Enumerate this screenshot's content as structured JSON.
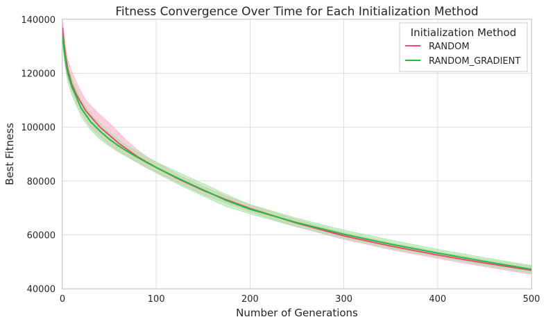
{
  "chart_data": {
    "type": "line",
    "title": "Fitness Convergence Over Time for Each Initialization Method",
    "xlabel": "Number of Generations",
    "ylabel": "Best Fitness",
    "xlim": [
      0,
      500
    ],
    "ylim": [
      40000,
      140000
    ],
    "xticks": [
      0,
      100,
      200,
      300,
      400,
      500
    ],
    "yticks": [
      40000,
      60000,
      80000,
      100000,
      120000,
      140000
    ],
    "grid": true,
    "legend": {
      "title": "Initialization Method",
      "placement": "top-right"
    },
    "series": [
      {
        "name": "RANDOM",
        "color": "#f0467c",
        "band_color": "#ffb3c8",
        "x": [
          0,
          2,
          4,
          6,
          10,
          15,
          20,
          25,
          30,
          40,
          50,
          60,
          70,
          80,
          90,
          100,
          125,
          150,
          175,
          200,
          250,
          300,
          350,
          400,
          450,
          500
        ],
        "mean": [
          137000,
          130000,
          125000,
          121000,
          116000,
          112000,
          109000,
          106000,
          104000,
          100000,
          97000,
          94000,
          91500,
          89000,
          87000,
          85000,
          80500,
          76500,
          73000,
          69800,
          64300,
          59600,
          55800,
          52500,
          49500,
          46800
        ],
        "lower": [
          134000,
          127000,
          122000,
          118000,
          113500,
          109000,
          105500,
          102500,
          100000,
          96500,
          93500,
          91000,
          89000,
          87000,
          85000,
          83300,
          79000,
          75000,
          71700,
          68500,
          63000,
          58300,
          54500,
          51200,
          48200,
          45300
        ],
        "upper": [
          140000,
          133000,
          128000,
          124500,
          120500,
          116500,
          113000,
          110000,
          108000,
          104500,
          101500,
          98000,
          94500,
          91500,
          89000,
          87000,
          82000,
          78000,
          74300,
          71000,
          65600,
          60900,
          57100,
          53800,
          50800,
          48300
        ]
      },
      {
        "name": "RANDOM_GRADIENT",
        "color": "#1fbf3c",
        "band_color": "#9fe89f",
        "x": [
          0,
          2,
          4,
          6,
          10,
          15,
          20,
          25,
          30,
          40,
          50,
          60,
          70,
          80,
          90,
          100,
          125,
          150,
          175,
          200,
          250,
          300,
          350,
          400,
          450,
          500
        ],
        "mean": [
          134000,
          128000,
          123000,
          119500,
          115000,
          111000,
          107000,
          104500,
          102000,
          98500,
          95500,
          93000,
          90800,
          88800,
          86800,
          85000,
          80700,
          76700,
          72700,
          69500,
          64500,
          60200,
          56500,
          53200,
          50100,
          47200
        ],
        "lower": [
          131000,
          125000,
          120000,
          116500,
          112000,
          108000,
          104000,
          101500,
          99000,
          95500,
          93000,
          90700,
          88800,
          86800,
          84800,
          83000,
          78500,
          74400,
          70500,
          67800,
          62900,
          58700,
          55000,
          51800,
          48700,
          45800
        ],
        "upper": [
          137000,
          131000,
          126000,
          122500,
          118000,
          114000,
          110000,
          107500,
          105000,
          101500,
          98000,
          95300,
          92800,
          90800,
          88800,
          87000,
          82900,
          79000,
          74900,
          71200,
          66100,
          61700,
          58000,
          54600,
          51500,
          48600
        ]
      }
    ]
  }
}
